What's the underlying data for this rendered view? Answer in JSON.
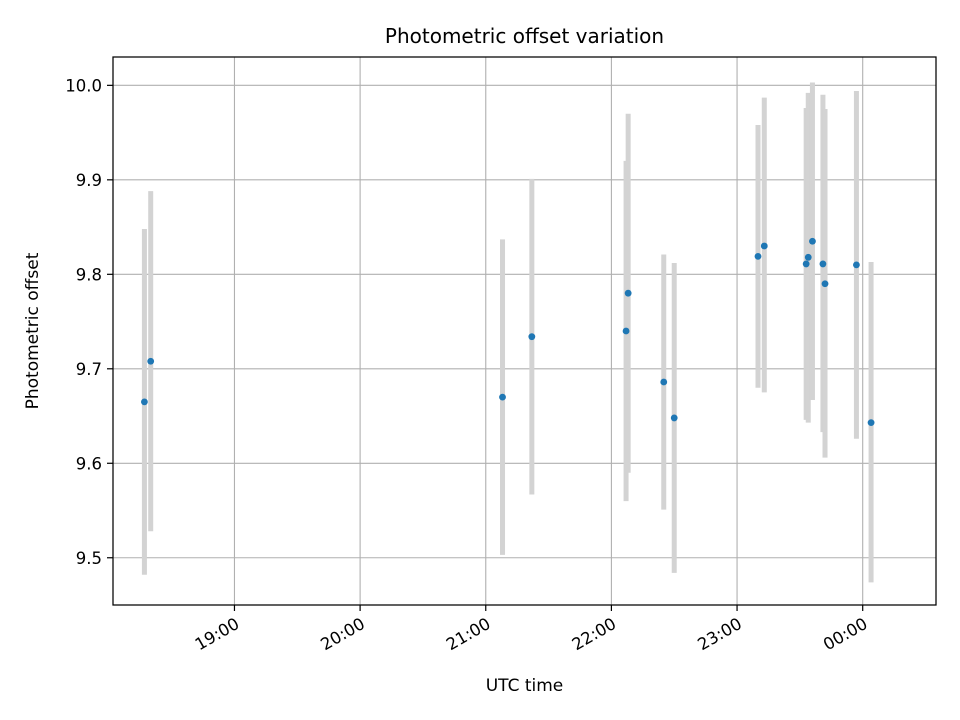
{
  "chart_data": {
    "type": "scatter",
    "title": "Photometric offset variation",
    "xlabel": "UTC time",
    "ylabel": "Photometric offset",
    "ylim": [
      9.45,
      10.03
    ],
    "xlim": [
      "18:02",
      "00:35"
    ],
    "grid": true,
    "y_ticks": [
      "9.5",
      "9.6",
      "9.7",
      "9.8",
      "9.9",
      "10.0"
    ],
    "x_ticks": [
      "19:00",
      "20:00",
      "21:00",
      "22:00",
      "23:00",
      "00:00"
    ],
    "series": [
      {
        "points": [
          {
            "x": "18:17",
            "y": 9.665,
            "ylow": 9.482,
            "yhigh": 9.848
          },
          {
            "x": "18:20",
            "y": 9.708,
            "ylow": 9.528,
            "yhigh": 9.888
          },
          {
            "x": "21:08",
            "y": 9.67,
            "ylow": 9.503,
            "yhigh": 9.837
          },
          {
            "x": "21:22",
            "y": 9.734,
            "ylow": 9.567,
            "yhigh": 9.901
          },
          {
            "x": "22:07",
            "y": 9.74,
            "ylow": 9.56,
            "yhigh": 9.92
          },
          {
            "x": "22:08",
            "y": 9.78,
            "ylow": 9.59,
            "yhigh": 9.97
          },
          {
            "x": "22:25",
            "y": 9.686,
            "ylow": 9.551,
            "yhigh": 9.821
          },
          {
            "x": "22:30",
            "y": 9.648,
            "ylow": 9.484,
            "yhigh": 9.812
          },
          {
            "x": "23:10",
            "y": 9.819,
            "ylow": 9.68,
            "yhigh": 9.958
          },
          {
            "x": "23:13",
            "y": 9.83,
            "ylow": 9.675,
            "yhigh": 9.987
          },
          {
            "x": "23:33",
            "y": 9.811,
            "ylow": 9.646,
            "yhigh": 9.976
          },
          {
            "x": "23:34",
            "y": 9.818,
            "ylow": 9.643,
            "yhigh": 9.992
          },
          {
            "x": "23:36",
            "y": 9.835,
            "ylow": 9.667,
            "yhigh": 10.003
          },
          {
            "x": "23:41",
            "y": 9.811,
            "ylow": 9.633,
            "yhigh": 9.99
          },
          {
            "x": "23:42",
            "y": 9.79,
            "ylow": 9.606,
            "yhigh": 9.975
          },
          {
            "x": "23:57",
            "y": 9.81,
            "ylow": 9.626,
            "yhigh": 9.994
          },
          {
            "x": "00:04",
            "y": 9.643,
            "ylow": 9.474,
            "yhigh": 9.813
          }
        ]
      }
    ]
  },
  "colors": {
    "point": "#1f77b4",
    "errorbar": "#d3d3d3",
    "grid": "#b0b0b0",
    "axis": "#000000"
  }
}
